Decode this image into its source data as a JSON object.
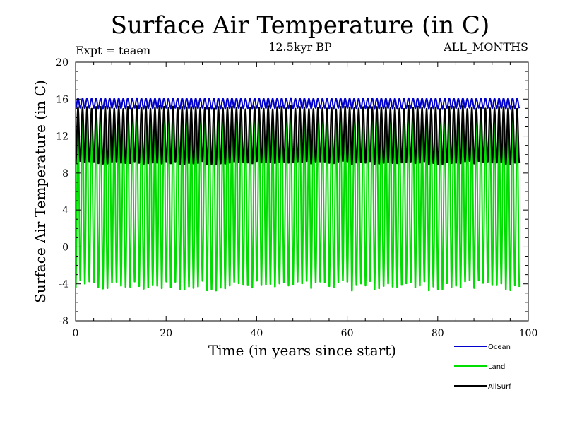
{
  "chart_data": {
    "type": "line",
    "title": "Surface Air Temperature (in C)",
    "subtitle_left": "Expt = teaen",
    "subtitle_center": "12.5kyr BP",
    "subtitle_right": "ALL_MONTHS",
    "xlabel": "Time (in years since start)",
    "ylabel": "Surface Air Temperature (in C)",
    "xlim": [
      0,
      100
    ],
    "ylim": [
      -8,
      20
    ],
    "x_ticks": [
      0,
      20,
      40,
      60,
      80,
      100
    ],
    "y_ticks": [
      -8,
      -4,
      0,
      4,
      8,
      12,
      16,
      20
    ],
    "x_range_data": [
      0,
      98
    ],
    "series": [
      {
        "name": "Ocean",
        "color": "#0000cc",
        "seasonal_min": 15.0,
        "seasonal_max": 16.1
      },
      {
        "name": "Land",
        "color": "#00dd00",
        "seasonal_min": -4.5,
        "seasonal_max": 14.2
      },
      {
        "name": "AllSurf",
        "color": "#000000",
        "seasonal_min": 9.0,
        "seasonal_max": 15.2
      }
    ],
    "legend": [
      "Ocean",
      "Land",
      "AllSurf"
    ],
    "legend_position": "bottom-right"
  }
}
